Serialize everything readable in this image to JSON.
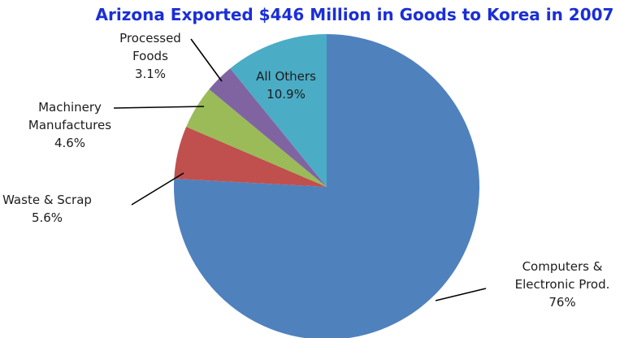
{
  "chart_data": {
    "type": "pie",
    "title": "Arizona Exported $446 Million in Goods to Korea in 2007",
    "slices": [
      {
        "label_lines": [
          "Computers &",
          "Electronic Prod."
        ],
        "value_label": "76%",
        "value": 76.0,
        "color": "#4f81bd"
      },
      {
        "label_lines": [
          "Waste & Scrap"
        ],
        "value_label": "5.6%",
        "value": 5.6,
        "color": "#c0504d"
      },
      {
        "label_lines": [
          "Machinery",
          "Manufactures"
        ],
        "value_label": "4.6%",
        "value": 4.6,
        "color": "#9bbb59"
      },
      {
        "label_lines": [
          "Processed",
          "Foods"
        ],
        "value_label": "3.1%",
        "value": 3.1,
        "color": "#8064a2"
      },
      {
        "label_lines": [
          "All Others"
        ],
        "value_label": "10.9%",
        "value": 10.9,
        "color": "#4bacc6"
      }
    ]
  }
}
